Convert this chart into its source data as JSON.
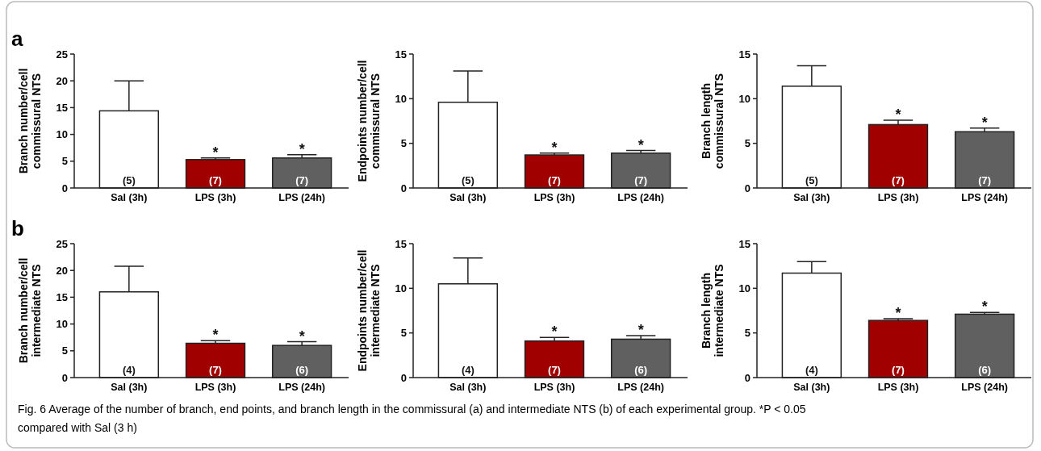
{
  "chart_data": [
    {
      "type": "bar",
      "ylabel": "Branch number/cell\ncommissural NTS",
      "categories": [
        "Sal (3h)",
        "LPS (3h)",
        "LPS (24h)"
      ],
      "values": [
        14.4,
        5.3,
        5.6
      ],
      "errors": [
        [
          14.4,
          20.0
        ],
        [
          5.3,
          5.6
        ],
        [
          5.6,
          6.2
        ]
      ],
      "colors": [
        "#ffffff",
        "#a00000",
        "#606060"
      ],
      "ylim": [
        0,
        25
      ],
      "yticks": [
        0,
        5,
        10,
        15,
        20,
        25
      ],
      "annotations": [
        "a",
        {
          "text": "(5)",
          "x": "Sal (3h)",
          "y": 0
        },
        {
          "text": "(7)",
          "x": "LPS (3h)",
          "y": 0
        },
        {
          "text": "(7)",
          "x": "LPS (24h)",
          "y": 0
        },
        {
          "text": "*",
          "x": "LPS (3h)",
          "y": 5.6
        },
        {
          "text": "*",
          "x": "LPS (24h)",
          "y": 6.2
        }
      ]
    },
    {
      "type": "bar",
      "ylabel": "Endpoints number/cell\ncommissural NTS",
      "categories": [
        "Sal (3h)",
        "LPS (3h)",
        "LPS (24h)"
      ],
      "values": [
        9.6,
        3.7,
        3.9
      ],
      "errors": [
        [
          9.6,
          13.1
        ],
        [
          3.7,
          3.9
        ],
        [
          3.9,
          4.2
        ]
      ],
      "colors": [
        "#ffffff",
        "#a00000",
        "#606060"
      ],
      "ylim": [
        0,
        15
      ],
      "yticks": [
        0,
        5,
        10,
        15
      ],
      "annotations": [
        {
          "text": "(5)",
          "x": "Sal (3h)",
          "y": 0
        },
        {
          "text": "(7)",
          "x": "LPS (3h)",
          "y": 0
        },
        {
          "text": "(7)",
          "x": "LPS (24h)",
          "y": 0
        },
        {
          "text": "*",
          "x": "LPS (3h)",
          "y": 3.9
        },
        {
          "text": "*",
          "x": "LPS (24h)",
          "y": 4.2
        }
      ]
    },
    {
      "type": "bar",
      "ylabel": "Branch length\ncommissural NTS",
      "categories": [
        "Sal (3h)",
        "LPS (3h)",
        "LPS (24h)"
      ],
      "values": [
        11.4,
        7.1,
        6.3
      ],
      "errors": [
        [
          11.4,
          13.7
        ],
        [
          7.1,
          7.6
        ],
        [
          6.3,
          6.7
        ]
      ],
      "colors": [
        "#ffffff",
        "#a00000",
        "#606060"
      ],
      "ylim": [
        0,
        15
      ],
      "yticks": [
        0,
        5,
        10,
        15
      ],
      "annotations": [
        {
          "text": "(5)",
          "x": "Sal (3h)",
          "y": 0
        },
        {
          "text": "(7)",
          "x": "LPS (3h)",
          "y": 0
        },
        {
          "text": "(7)",
          "x": "LPS (24h)",
          "y": 0
        },
        {
          "text": "*",
          "x": "LPS (3h)",
          "y": 7.6
        },
        {
          "text": "*",
          "x": "LPS (24h)",
          "y": 6.7
        }
      ]
    },
    {
      "type": "bar",
      "ylabel": "Branch number/cell\nintermediate NTS",
      "categories": [
        "Sal (3h)",
        "LPS (3h)",
        "LPS (24h)"
      ],
      "values": [
        16.0,
        6.4,
        6.0
      ],
      "errors": [
        [
          16.0,
          20.8
        ],
        [
          6.4,
          6.9
        ],
        [
          6.0,
          6.7
        ]
      ],
      "colors": [
        "#ffffff",
        "#a00000",
        "#606060"
      ],
      "ylim": [
        0,
        25
      ],
      "yticks": [
        0,
        5,
        10,
        15,
        20,
        25
      ],
      "annotations": [
        "b",
        {
          "text": "(4)",
          "x": "Sal (3h)",
          "y": 0
        },
        {
          "text": "(7)",
          "x": "LPS (3h)",
          "y": 0
        },
        {
          "text": "(6)",
          "x": "LPS (24h)",
          "y": 0
        },
        {
          "text": "*",
          "x": "LPS (3h)",
          "y": 6.9
        },
        {
          "text": "*",
          "x": "LPS (24h)",
          "y": 6.7
        }
      ]
    },
    {
      "type": "bar",
      "ylabel": "Endpoints number/cell\nintermediate NTS",
      "categories": [
        "Sal (3h)",
        "LPS (3h)",
        "LPS (24h)"
      ],
      "values": [
        10.5,
        4.1,
        4.3
      ],
      "errors": [
        [
          10.5,
          13.4
        ],
        [
          4.1,
          4.5
        ],
        [
          4.3,
          4.7
        ]
      ],
      "colors": [
        "#ffffff",
        "#a00000",
        "#606060"
      ],
      "ylim": [
        0,
        15
      ],
      "yticks": [
        0,
        5,
        10,
        15
      ],
      "annotations": [
        {
          "text": "(4)",
          "x": "Sal (3h)",
          "y": 0
        },
        {
          "text": "(7)",
          "x": "LPS (3h)",
          "y": 0
        },
        {
          "text": "(6)",
          "x": "LPS (24h)",
          "y": 0
        },
        {
          "text": "*",
          "x": "LPS (3h)",
          "y": 4.5
        },
        {
          "text": "*",
          "x": "LPS (24h)",
          "y": 4.7
        }
      ]
    },
    {
      "type": "bar",
      "ylabel": "Branch length\nintermediate NTS",
      "categories": [
        "Sal (3h)",
        "LPS (3h)",
        "LPS (24h)"
      ],
      "values": [
        11.7,
        6.4,
        7.1
      ],
      "errors": [
        [
          11.7,
          13.0
        ],
        [
          6.4,
          6.6
        ],
        [
          7.1,
          7.3
        ]
      ],
      "colors": [
        "#ffffff",
        "#a00000",
        "#606060"
      ],
      "ylim": [
        0,
        15
      ],
      "yticks": [
        0,
        5,
        10,
        15
      ],
      "annotations": [
        "Fig. 6 Average of the number of branch, end points, and branch length in the commissural (a) and intermediate NTS (b) of each experimental group. *P < 0.05 compared with Sal (3 h)",
        {
          "text": "(4)",
          "x": "Sal (3h)",
          "y": 0
        },
        {
          "text": "(7)",
          "x": "LPS (3h)",
          "y": 0
        },
        {
          "text": "(6)",
          "x": "LPS (24h)",
          "y": 0
        },
        {
          "text": "*",
          "x": "LPS (3h)",
          "y": 6.6
        },
        {
          "text": "*",
          "x": "LPS (24h)",
          "y": 7.3
        }
      ]
    }
  ]
}
